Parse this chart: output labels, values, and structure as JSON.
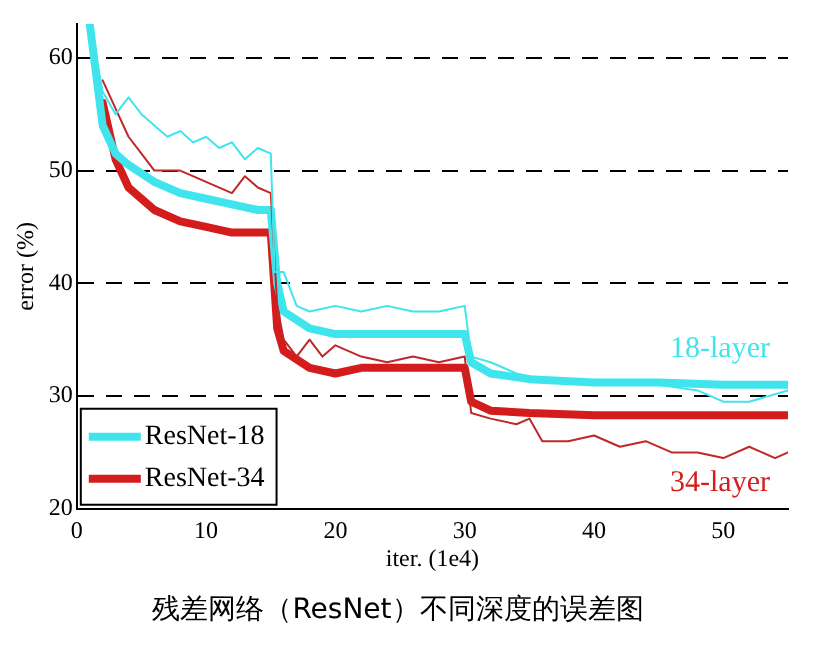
{
  "chart_data": {
    "type": "line",
    "title": "残差网络（ResNet）不同深度的误差图",
    "xlabel": "iter. (1e4)",
    "ylabel": "error (%)",
    "xlim": [
      0,
      55
    ],
    "ylim": [
      20,
      63
    ],
    "xticks": [
      0,
      10,
      20,
      30,
      40,
      50
    ],
    "yticks": [
      20,
      30,
      40,
      50,
      60
    ],
    "grid": "y",
    "line_style": "solid",
    "marker": "none",
    "legend": "bottom left",
    "annotations": [
      "18-layer",
      "34-layer"
    ],
    "series": [
      {
        "color": "#40e4ec",
        "x": [
          1,
          2,
          3,
          4,
          5,
          6,
          7,
          8,
          9,
          10,
          11,
          12,
          13,
          14,
          15,
          15.3,
          16,
          17,
          18,
          20,
          22,
          24,
          26,
          28,
          30,
          30.5,
          32,
          34,
          36,
          38,
          40,
          45,
          48,
          50,
          52,
          55
        ],
        "values": [
          63,
          57,
          55,
          56.5,
          55,
          54,
          53,
          53.5,
          52.5,
          53,
          52,
          52.5,
          51,
          52,
          51.5,
          41,
          41,
          38,
          37.5,
          38,
          37.5,
          38,
          37.5,
          37.5,
          38,
          33.5,
          33,
          32,
          31.5,
          31.5,
          31,
          31,
          30.5,
          29.5,
          29.5,
          30.5
        ]
      },
      {
        "color": "#c02828",
        "x": [
          2,
          3,
          4,
          5,
          6,
          8,
          10,
          12,
          13,
          14,
          15,
          15.5,
          16,
          17,
          18,
          19,
          20,
          22,
          24,
          26,
          28,
          30,
          30.5,
          32,
          34,
          35,
          36,
          38,
          40,
          42,
          44,
          46,
          48,
          50,
          52,
          54,
          55
        ],
        "values": [
          58,
          55.5,
          53,
          51.5,
          50,
          50,
          49,
          48,
          49.5,
          48.5,
          48,
          38,
          35,
          33.5,
          35,
          33.5,
          34.5,
          33.5,
          33,
          33.5,
          33,
          33.5,
          28.5,
          28,
          27.5,
          28,
          26,
          26,
          26.5,
          25.5,
          26,
          25,
          25,
          24.5,
          25.5,
          24.5,
          25
        ]
      },
      {
        "name": "ResNet-18",
        "color": "#40e4ec",
        "x": [
          1,
          2,
          3,
          4,
          6,
          8,
          10,
          12,
          14,
          15,
          15.5,
          16,
          18,
          20,
          25,
          30,
          30.5,
          32,
          35,
          40,
          45,
          50,
          55
        ],
        "values": [
          63,
          54,
          51.5,
          50.5,
          49,
          48,
          47.5,
          47,
          46.5,
          46.5,
          40,
          37.5,
          36,
          35.5,
          35.5,
          35.5,
          33,
          32,
          31.5,
          31.2,
          31.2,
          31,
          31
        ]
      },
      {
        "name": "ResNet-34",
        "color": "#d41c1c",
        "x": [
          2,
          3,
          4,
          6,
          8,
          10,
          12,
          14,
          15,
          15.5,
          16,
          18,
          20,
          22,
          25,
          30,
          30.5,
          32,
          35,
          40,
          45,
          50,
          55
        ],
        "values": [
          56,
          51,
          48.5,
          46.5,
          45.5,
          45,
          44.5,
          44.5,
          44.5,
          36,
          34,
          32.5,
          32,
          32.5,
          32.5,
          32.5,
          29.5,
          28.7,
          28.5,
          28.3,
          28.3,
          28.3,
          28.3
        ]
      }
    ]
  }
}
